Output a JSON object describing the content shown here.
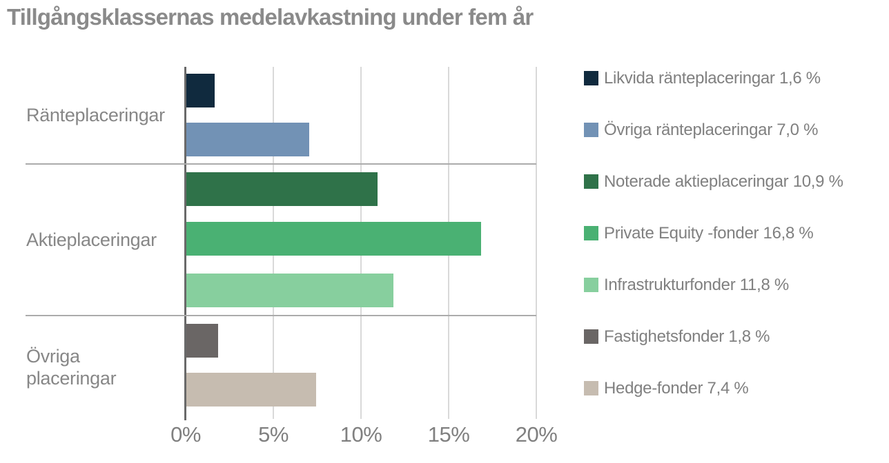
{
  "title": "Tillgångsklassernas medelavkastning under fem år",
  "colors": {
    "title_text": "#8a8a8a",
    "category_text": "#878787",
    "tick_text": "#808080",
    "legend_text": "#808080",
    "gridline": "#d9d9d9",
    "axis_line": "#696969",
    "separator": "#ababab"
  },
  "chart_data": {
    "type": "bar",
    "orientation": "horizontal",
    "title": "Tillgångsklassernas medelavkastning under fem år",
    "xlabel": "",
    "ylabel": "",
    "xlim": [
      0,
      20
    ],
    "x_ticks": [
      "0%",
      "5%",
      "10%",
      "15%",
      "20%"
    ],
    "grid": "vertical",
    "legend_position": "right",
    "groups": [
      {
        "category": "Ränteplaceringar",
        "bars": [
          {
            "name": "Likvida ränteplaceringar",
            "value": 1.6,
            "display_value": "1,6 %",
            "color": "#102a3e"
          },
          {
            "name": "Övriga ränteplaceringar",
            "value": 7.0,
            "display_value": "7,0 %",
            "color": "#7292b5"
          }
        ]
      },
      {
        "category": "Aktieplaceringar",
        "bars": [
          {
            "name": "Noterade aktieplaceringar",
            "value": 10.9,
            "display_value": "10,9 %",
            "color": "#2f7249"
          },
          {
            "name": "Private Equity -fonder",
            "value": 16.8,
            "display_value": "16,8 %",
            "color": "#4ab173"
          },
          {
            "name": "Infrastrukturfonder",
            "value": 11.8,
            "display_value": "11,8 %",
            "color": "#87cf9e"
          }
        ]
      },
      {
        "category": "Övriga\nplaceringar",
        "bars": [
          {
            "name": "Fastighetsfonder",
            "value": 1.8,
            "display_value": "1,8 %",
            "color": "#6a6665"
          },
          {
            "name": "Hedge-fonder",
            "value": 7.4,
            "display_value": "7,4 %",
            "color": "#c6bcb0"
          }
        ]
      }
    ],
    "legend": [
      {
        "label": "Likvida ränteplaceringar 1,6 %",
        "color": "#102a3e"
      },
      {
        "label": "Övriga ränteplaceringar 7,0 %",
        "color": "#7292b5"
      },
      {
        "label": "Noterade aktieplaceringar 10,9 %",
        "color": "#2f7249"
      },
      {
        "label": "Private Equity -fonder 16,8 %",
        "color": "#4ab173"
      },
      {
        "label": "Infrastrukturfonder 11,8 %",
        "color": "#87cf9e"
      },
      {
        "label": "Fastighetsfonder 1,8 %",
        "color": "#6a6665"
      },
      {
        "label": "Hedge-fonder 7,4 %",
        "color": "#c6bcb0"
      }
    ]
  }
}
